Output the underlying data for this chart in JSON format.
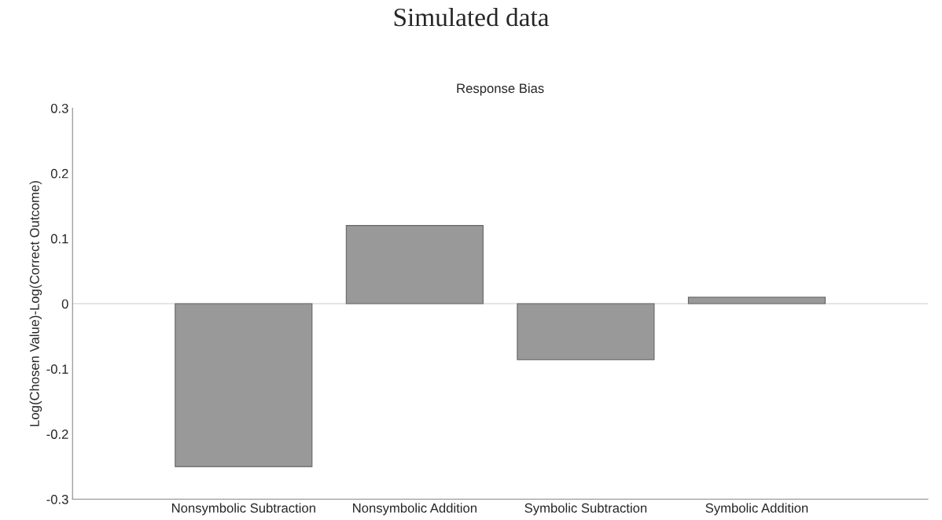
{
  "chart_data": {
    "type": "bar",
    "title": "Simulated data",
    "subtitle": "Response Bias",
    "ylabel": "Log(Chosen Value)-Log(Correct Outcome)",
    "categories": [
      "Nonsymbolic Subtraction",
      "Nonsymbolic Addition",
      "Symbolic Subtraction",
      "Symbolic Addition"
    ],
    "values": [
      -0.25,
      0.12,
      -0.086,
      0.01
    ],
    "color": "#999999",
    "ylim": [
      -0.3,
      0.3
    ],
    "yticks": [
      -0.3,
      -0.2,
      -0.1,
      0,
      0.1,
      0.2,
      0.3
    ],
    "ref_lines": [
      {
        "axis": "y",
        "value": 0,
        "color": "#dddddd"
      }
    ],
    "grid": false,
    "legend": false
  }
}
